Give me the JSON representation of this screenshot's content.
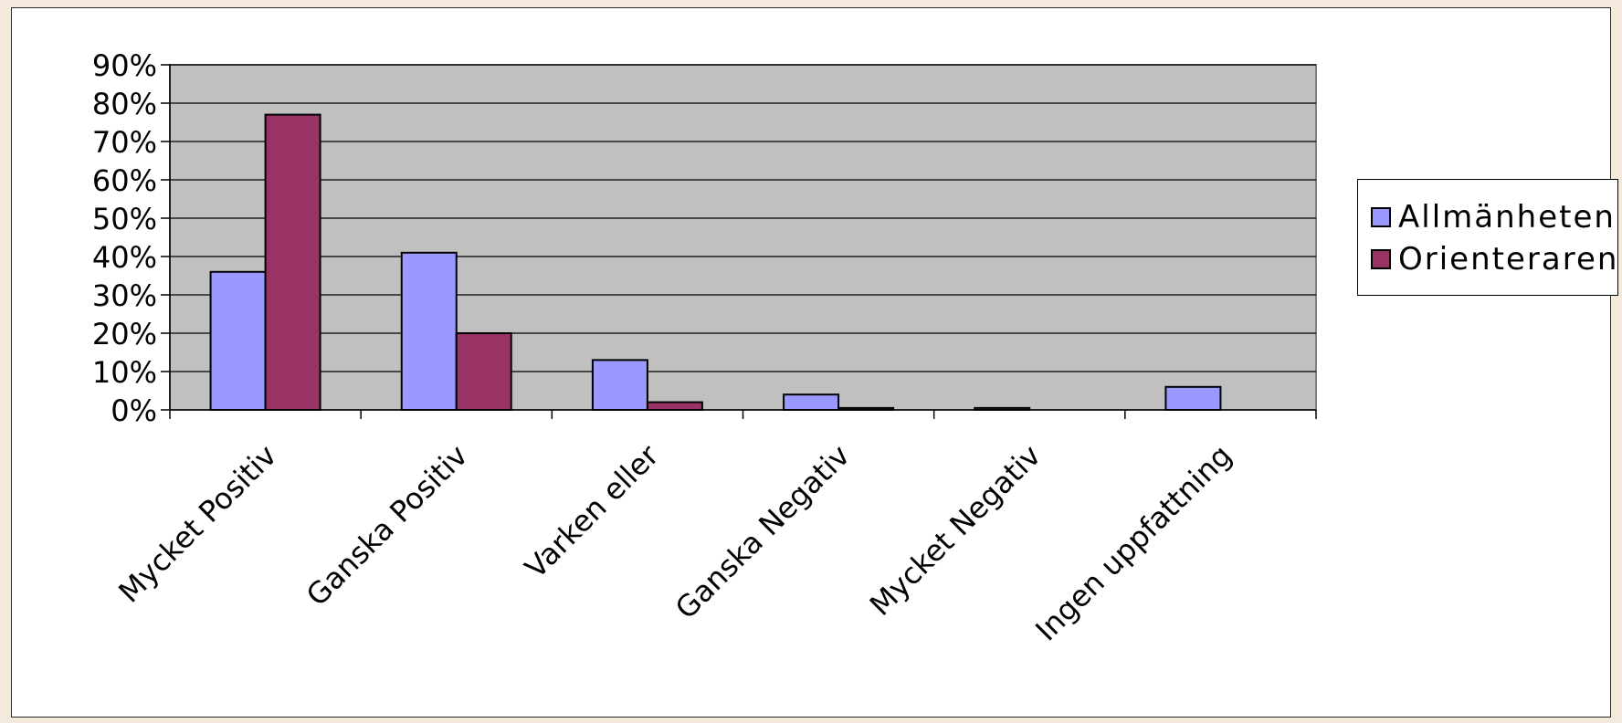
{
  "chart_data": {
    "type": "bar",
    "categories": [
      "Mycket Positiv",
      "Ganska Positiv",
      "Varken eller",
      "Ganska Negativ",
      "Mycket Negativ",
      "Ingen uppfattning"
    ],
    "series": [
      {
        "name": "Allmänheten",
        "values": [
          36,
          41,
          13,
          4,
          0.5,
          6
        ],
        "color": "#9999ff"
      },
      {
        "name": "Orienteraren",
        "values": [
          77,
          20,
          2,
          0.5,
          0,
          0
        ],
        "color": "#993366"
      }
    ],
    "ylim": [
      0,
      90
    ],
    "yticks": [
      "0%",
      "10%",
      "20%",
      "30%",
      "40%",
      "50%",
      "60%",
      "70%",
      "80%",
      "90%"
    ],
    "grid": true,
    "legend_position": "right",
    "plot_background": "#c0c0c0"
  }
}
